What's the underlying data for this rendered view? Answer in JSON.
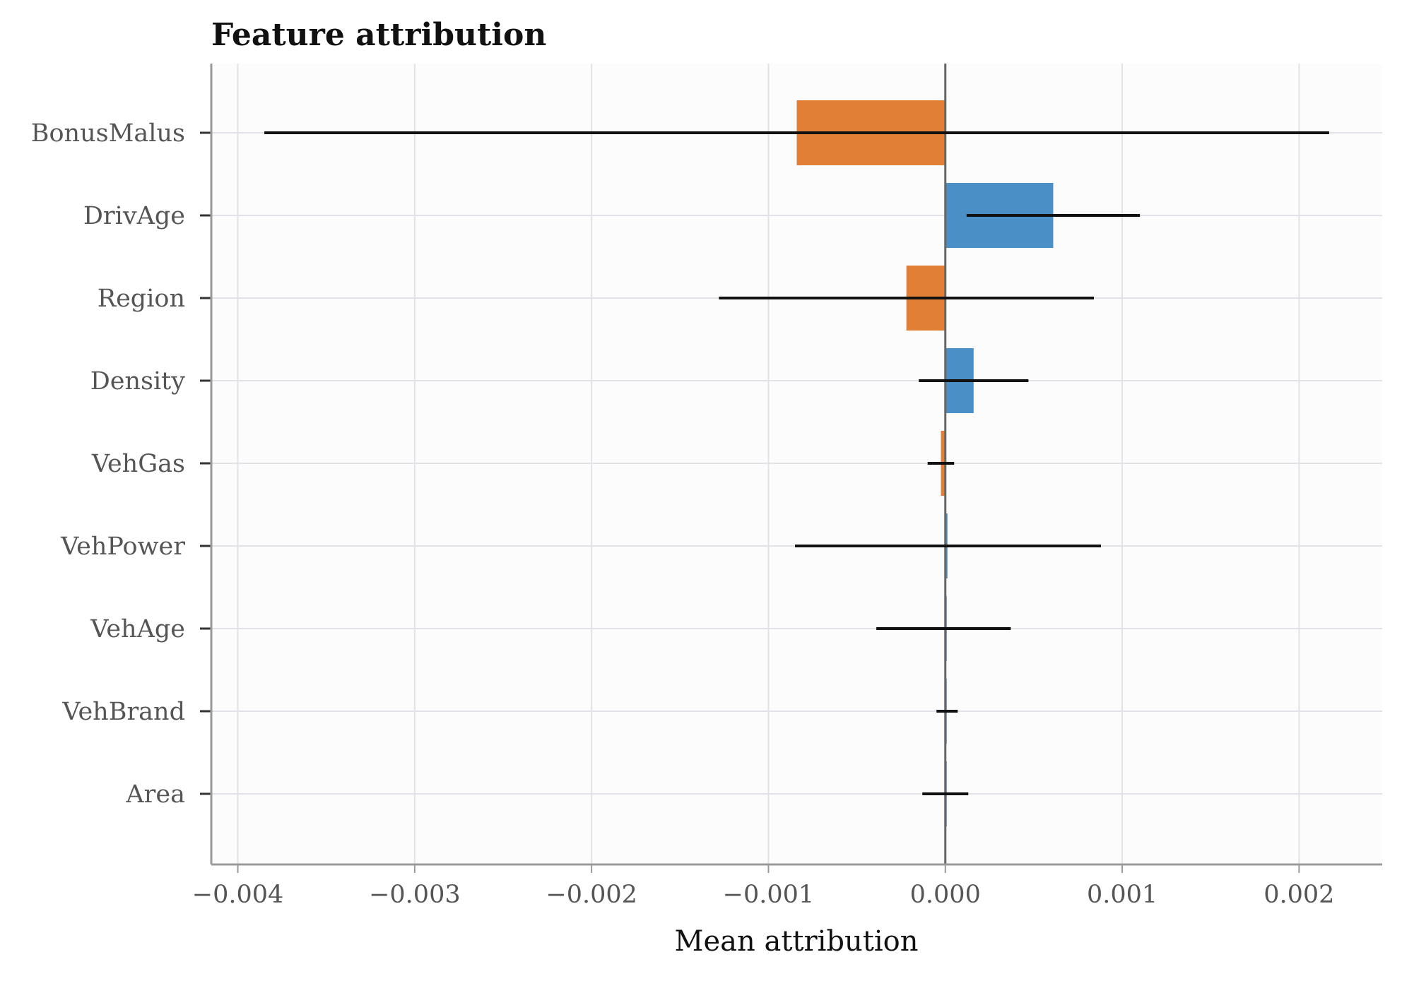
{
  "chart_data": {
    "type": "bar",
    "orientation": "horizontal",
    "title": "Feature attribution",
    "xlabel": "Mean attribution",
    "ylabel": "",
    "xlim": [
      -0.00415,
      0.00247
    ],
    "x_ticks": [
      -0.004,
      -0.003,
      -0.002,
      -0.001,
      0.0,
      0.001,
      0.002
    ],
    "x_tick_labels": [
      "−0.004",
      "−0.003",
      "−0.002",
      "−0.001",
      "0.000",
      "0.001",
      "0.002"
    ],
    "grid": true,
    "colors": {
      "positive": "#4a8fc6",
      "negative": "#e07f35",
      "errorbar": "#111111",
      "zero_line": "#666666",
      "grid": "#e2e2e8",
      "axes": "#9a9a9a"
    },
    "categories": [
      "BonusMalus",
      "DrivAge",
      "Region",
      "Density",
      "VehGas",
      "VehPower",
      "VehAge",
      "VehBrand",
      "Area"
    ],
    "values": [
      -0.00084,
      0.00061,
      -0.00022,
      0.00016,
      -2.5e-05,
      1.2e-05,
      0.0,
      0.0,
      0.0
    ],
    "error_low": [
      -0.00385,
      0.00012,
      -0.00128,
      -0.00015,
      -0.0001,
      -0.00085,
      -0.00039,
      -5e-05,
      -0.00013
    ],
    "error_high": [
      0.00217,
      0.0011,
      0.00084,
      0.00047,
      5e-05,
      0.00088,
      0.00037,
      7e-05,
      0.00013
    ]
  }
}
